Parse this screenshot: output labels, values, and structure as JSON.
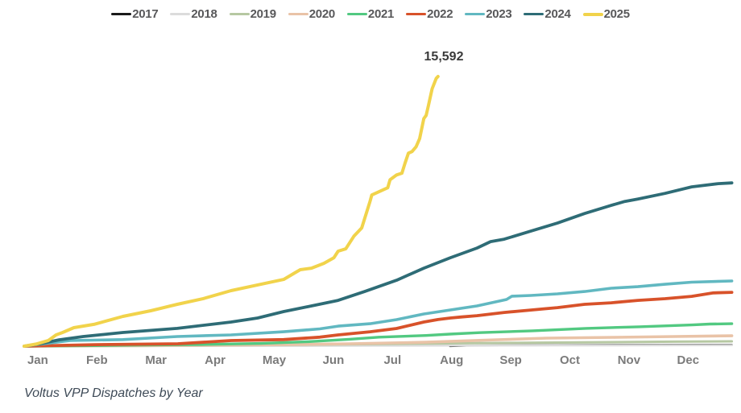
{
  "chart_data": {
    "type": "line",
    "title": "",
    "caption": "Voltus VPP Dispatches by Year",
    "ylabel": "",
    "xlabel": "",
    "grid": false,
    "legend_position": "top-center",
    "x_tick_labels": [
      "Jan",
      "Feb",
      "Mar",
      "Apr",
      "May",
      "Jun",
      "Jul",
      "Aug",
      "Sep",
      "Oct",
      "Nov",
      "Dec"
    ],
    "x_range_months": [
      0,
      12
    ],
    "ylim": [
      0,
      16000
    ],
    "y_axis_visible": false,
    "annotation": {
      "text": "15,592",
      "series": "2025",
      "value": 15592,
      "month_position": 7.0
    },
    "series": [
      {
        "name": "2017",
        "color": "#1a1a1a",
        "width": 2.2,
        "points": [
          [
            7.2,
            0
          ],
          [
            7.6,
            40
          ],
          [
            8.5,
            60
          ],
          [
            10,
            75
          ],
          [
            11.97,
            90
          ]
        ]
      },
      {
        "name": "2018",
        "color": "#dcdcdc",
        "width": 2.6,
        "points": [
          [
            0,
            0
          ],
          [
            2,
            10
          ],
          [
            5,
            25
          ],
          [
            8,
            40
          ],
          [
            10,
            50
          ],
          [
            11.97,
            60
          ]
        ]
      },
      {
        "name": "2019",
        "color": "#b6c8a2",
        "width": 3.0,
        "points": [
          [
            0,
            0
          ],
          [
            1,
            15
          ],
          [
            3,
            50
          ],
          [
            5,
            95
          ],
          [
            6.4,
            140
          ],
          [
            8,
            185
          ],
          [
            9.5,
            220
          ],
          [
            11,
            260
          ],
          [
            11.97,
            280
          ]
        ]
      },
      {
        "name": "2020",
        "color": "#e9c3a7",
        "width": 3.6,
        "points": [
          [
            0,
            0
          ],
          [
            2,
            30
          ],
          [
            4.4,
            90
          ],
          [
            5.5,
            140
          ],
          [
            6.8,
            230
          ],
          [
            7.8,
            350
          ],
          [
            8.84,
            465
          ],
          [
            10,
            510
          ],
          [
            11,
            560
          ],
          [
            11.97,
            600
          ]
        ]
      },
      {
        "name": "2021",
        "color": "#52c981",
        "width": 3.4,
        "points": [
          [
            0,
            0
          ],
          [
            1,
            30
          ],
          [
            2,
            65
          ],
          [
            3,
            100
          ],
          [
            4,
            160
          ],
          [
            4.8,
            260
          ],
          [
            5.5,
            400
          ],
          [
            6,
            520
          ],
          [
            6.8,
            620
          ],
          [
            7.2,
            700
          ],
          [
            7.7,
            780
          ],
          [
            8.6,
            890
          ],
          [
            9.5,
            1030
          ],
          [
            10.4,
            1120
          ],
          [
            11.3,
            1230
          ],
          [
            11.6,
            1280
          ],
          [
            11.97,
            1300
          ]
        ]
      },
      {
        "name": "2022",
        "color": "#d8522a",
        "width": 3.8,
        "points": [
          [
            0,
            0
          ],
          [
            1.2,
            90
          ],
          [
            2.6,
            140
          ],
          [
            3.5,
            325
          ],
          [
            4.39,
            380
          ],
          [
            5,
            520
          ],
          [
            5.31,
            650
          ],
          [
            5.85,
            835
          ],
          [
            6.3,
            1025
          ],
          [
            6.76,
            1395
          ],
          [
            7.0,
            1540
          ],
          [
            7.21,
            1630
          ],
          [
            7.4,
            1690
          ],
          [
            7.66,
            1765
          ],
          [
            8.12,
            1950
          ],
          [
            8.57,
            2090
          ],
          [
            9.02,
            2230
          ],
          [
            9.48,
            2420
          ],
          [
            9.93,
            2510
          ],
          [
            10.38,
            2650
          ],
          [
            10.84,
            2745
          ],
          [
            11.29,
            2880
          ],
          [
            11.66,
            3080
          ],
          [
            11.97,
            3115
          ]
        ]
      },
      {
        "name": "2023",
        "color": "#61b8c1",
        "width": 3.6,
        "points": [
          [
            0,
            0
          ],
          [
            0.78,
            325
          ],
          [
            1.67,
            380
          ],
          [
            2.59,
            560
          ],
          [
            3.5,
            650
          ],
          [
            4.39,
            835
          ],
          [
            5,
            1000
          ],
          [
            5.31,
            1160
          ],
          [
            5.85,
            1300
          ],
          [
            6.3,
            1535
          ],
          [
            6.76,
            1860
          ],
          [
            7.21,
            2095
          ],
          [
            7.66,
            2325
          ],
          [
            8.16,
            2700
          ],
          [
            8.25,
            2890
          ],
          [
            8.57,
            2930
          ],
          [
            9.02,
            3025
          ],
          [
            9.48,
            3160
          ],
          [
            9.93,
            3350
          ],
          [
            10.38,
            3440
          ],
          [
            10.84,
            3580
          ],
          [
            11.29,
            3700
          ],
          [
            11.97,
            3770
          ]
        ]
      },
      {
        "name": "2024",
        "color": "#2e6c76",
        "width": 3.8,
        "points": [
          [
            0,
            0
          ],
          [
            0.27,
            140
          ],
          [
            0.59,
            370
          ],
          [
            1.0,
            560
          ],
          [
            1.67,
            790
          ],
          [
            2.59,
            1030
          ],
          [
            3.5,
            1395
          ],
          [
            3.95,
            1630
          ],
          [
            4.39,
            2000
          ],
          [
            4.86,
            2325
          ],
          [
            5.31,
            2650
          ],
          [
            5.76,
            3160
          ],
          [
            6.3,
            3810
          ],
          [
            6.76,
            4510
          ],
          [
            7.21,
            5115
          ],
          [
            7.66,
            5675
          ],
          [
            7.89,
            6045
          ],
          [
            8.12,
            6185
          ],
          [
            8.57,
            6650
          ],
          [
            9.02,
            7115
          ],
          [
            9.48,
            7670
          ],
          [
            9.93,
            8140
          ],
          [
            10.16,
            8370
          ],
          [
            10.38,
            8510
          ],
          [
            10.84,
            8835
          ],
          [
            11.29,
            9210
          ],
          [
            11.74,
            9395
          ],
          [
            11.97,
            9440
          ]
        ]
      },
      {
        "name": "2025",
        "color": "#f1d34b",
        "width": 4.0,
        "points": [
          [
            0,
            0
          ],
          [
            0.2,
            120
          ],
          [
            0.41,
            330
          ],
          [
            0.54,
            650
          ],
          [
            0.65,
            790
          ],
          [
            0.84,
            1070
          ],
          [
            1.18,
            1260
          ],
          [
            1.67,
            1720
          ],
          [
            2.14,
            2050
          ],
          [
            2.59,
            2420
          ],
          [
            3.03,
            2750
          ],
          [
            3.5,
            3210
          ],
          [
            3.95,
            3540
          ],
          [
            4.39,
            3860
          ],
          [
            4.6,
            4280
          ],
          [
            4.67,
            4420
          ],
          [
            4.86,
            4510
          ],
          [
            5.07,
            4790
          ],
          [
            5.24,
            5115
          ],
          [
            5.31,
            5490
          ],
          [
            5.44,
            5625
          ],
          [
            5.58,
            6370
          ],
          [
            5.71,
            6835
          ],
          [
            5.85,
            8370
          ],
          [
            5.88,
            8740
          ],
          [
            6.03,
            8975
          ],
          [
            6.15,
            9160
          ],
          [
            6.19,
            9625
          ],
          [
            6.3,
            9900
          ],
          [
            6.39,
            10000
          ],
          [
            6.44,
            10555
          ],
          [
            6.5,
            11160
          ],
          [
            6.56,
            11250
          ],
          [
            6.63,
            11530
          ],
          [
            6.69,
            12000
          ],
          [
            6.76,
            13160
          ],
          [
            6.8,
            13345
          ],
          [
            6.84,
            13950
          ],
          [
            6.9,
            14880
          ],
          [
            6.97,
            15480
          ],
          [
            7.0,
            15592
          ]
        ]
      }
    ]
  }
}
